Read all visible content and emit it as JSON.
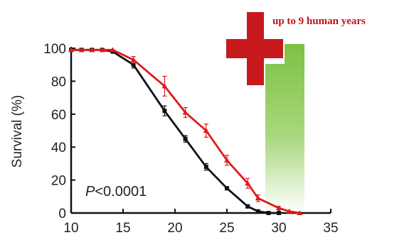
{
  "chart_data": {
    "type": "line",
    "title": "",
    "xlabel": "",
    "ylabel": "Survival (%)",
    "xlim": [
      10,
      35
    ],
    "ylim": [
      0,
      100
    ],
    "x_ticks": [
      "10",
      "15",
      "20",
      "25",
      "30",
      "35"
    ],
    "y_ticks": [
      "0",
      "20",
      "40",
      "60",
      "80",
      "100"
    ],
    "grid": false,
    "annotations": {
      "p_value_italic": "P",
      "p_value_rest": "<0.0001",
      "callout": "up to 9 human years"
    },
    "colors": {
      "control": "#111111",
      "treated": "#e0191b",
      "cross": "#c8191c",
      "bar_top": "#7cc242",
      "bar_bottom": "#ffffff",
      "callout_text": "#c0141b"
    },
    "series": [
      {
        "color": "black",
        "x": [
          10,
          11,
          12,
          13,
          14,
          16,
          19,
          21,
          23,
          25,
          27,
          28,
          29,
          30
        ],
        "y": [
          99,
          99,
          99,
          99,
          98,
          90,
          62,
          45,
          28,
          15,
          4,
          1,
          0,
          0
        ],
        "err": [
          0,
          0,
          0,
          0,
          0,
          2,
          3,
          2,
          2,
          1,
          1,
          0,
          0,
          0
        ]
      },
      {
        "color": "red",
        "x": [
          10,
          11,
          12,
          13,
          14,
          16,
          19,
          21,
          23,
          25,
          27,
          28,
          30,
          31,
          32
        ],
        "y": [
          99,
          99,
          99,
          99,
          99,
          93,
          77,
          61,
          50,
          32,
          18,
          9,
          3,
          1,
          0
        ],
        "err": [
          0,
          0,
          0,
          0,
          0,
          2,
          6,
          3,
          4,
          3,
          3,
          2,
          1,
          0,
          0
        ]
      }
    ]
  }
}
